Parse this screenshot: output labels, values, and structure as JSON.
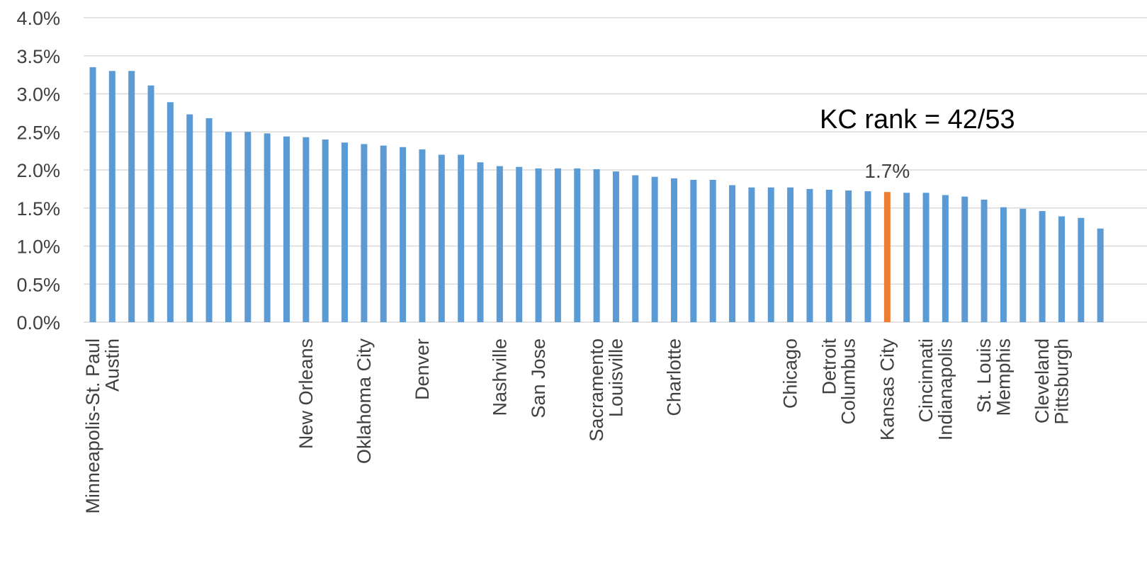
{
  "chart_data": {
    "type": "bar",
    "title": "",
    "xlabel": "",
    "ylabel": "",
    "ylim": [
      0,
      0.04
    ],
    "y_ticks": [
      0,
      0.005,
      0.01,
      0.015,
      0.02,
      0.025,
      0.03,
      0.035,
      0.04
    ],
    "y_tick_labels": [
      "0.0%",
      "0.5%",
      "1.0%",
      "1.5%",
      "2.0%",
      "2.5%",
      "3.0%",
      "3.5%",
      "4.0%"
    ],
    "grid": true,
    "legend": "none",
    "colors": {
      "default": "#5b9bd5",
      "highlight": "#ed7d31"
    },
    "categories": [
      "Minneapolis-St. Paul",
      "Austin",
      "",
      "",
      "",
      "",
      "",
      "",
      "",
      "",
      "",
      "New Orleans",
      "",
      "",
      "Oklahoma City",
      "",
      "",
      "Denver",
      "",
      "",
      "",
      "Nashville",
      "",
      "San Jose",
      "",
      "",
      "Sacramento",
      "Louisville",
      "",
      "",
      "Charlotte",
      "",
      "",
      "",
      "",
      "",
      "Chicago",
      "",
      "Detroit",
      "Columbus",
      "",
      "Kansas City",
      "",
      "Cincinnati",
      "Indianapolis",
      "",
      "St. Louis",
      "Memphis",
      "",
      "Cleveland",
      "Pittsburgh",
      "",
      ""
    ],
    "values": [
      0.0335,
      0.033,
      0.033,
      0.0311,
      0.0289,
      0.0273,
      0.0268,
      0.025,
      0.025,
      0.0248,
      0.0244,
      0.0243,
      0.024,
      0.0236,
      0.0234,
      0.0232,
      0.023,
      0.0227,
      0.022,
      0.022,
      0.021,
      0.0205,
      0.0204,
      0.0202,
      0.0202,
      0.0202,
      0.0201,
      0.0198,
      0.0193,
      0.0191,
      0.0189,
      0.0187,
      0.0187,
      0.018,
      0.0177,
      0.0177,
      0.0177,
      0.0175,
      0.0174,
      0.0173,
      0.0172,
      0.0171,
      0.017,
      0.017,
      0.0167,
      0.0165,
      0.0161,
      0.0151,
      0.0149,
      0.0146,
      0.0139,
      0.0137,
      0.0123
    ],
    "highlight_index": 41,
    "data_labels": [
      {
        "index": 41,
        "text": "1.7%"
      }
    ],
    "annotations": [
      {
        "text": "KC rank = 42/53"
      }
    ]
  }
}
